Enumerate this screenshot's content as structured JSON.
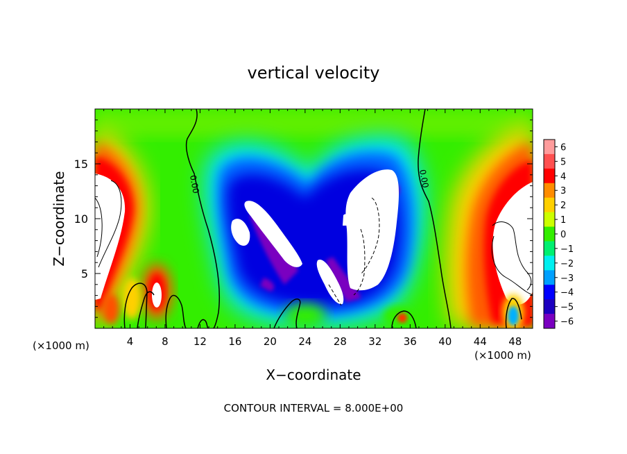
{
  "chart_data": {
    "type": "heatmap",
    "title": "vertical velocity",
    "xlabel": "X−coordinate",
    "ylabel": "Z−coordinate",
    "x_unit_left": "(×1000 m)",
    "x_unit_right": "(×1000 m)",
    "footer": "CONTOUR INTERVAL = 8.000E+00",
    "xlim": [
      0,
      50
    ],
    "ylim": [
      0,
      20
    ],
    "x_ticks": [
      4,
      8,
      12,
      16,
      20,
      24,
      28,
      32,
      36,
      40,
      44,
      48
    ],
    "x_tick_labels": [
      "4",
      "8",
      "12",
      "16",
      "20",
      "24",
      "28",
      "32",
      "36",
      "40",
      "44",
      "48"
    ],
    "y_ticks": [
      5,
      10,
      15
    ],
    "y_tick_labels": [
      "5",
      "10",
      "15"
    ],
    "contour_label": "0.00",
    "colorbar": {
      "levels": [
        6,
        5,
        4,
        3,
        2,
        1,
        0,
        -1,
        -2,
        -3,
        -4,
        -5,
        -6
      ],
      "labels": [
        "6",
        "5",
        "4",
        "3",
        "2",
        "1",
        "0",
        "−1",
        "−2",
        "−3",
        "−4",
        "−5",
        "−6"
      ],
      "colors": [
        "#ff9c9c",
        "#ff5050",
        "#ff0000",
        "#ff8c00",
        "#ffd000",
        "#ccff00",
        "#33ee00",
        "#00f070",
        "#00f0f0",
        "#00a0ff",
        "#0000ff",
        "#1c00c0",
        "#7a00c0"
      ]
    }
  }
}
